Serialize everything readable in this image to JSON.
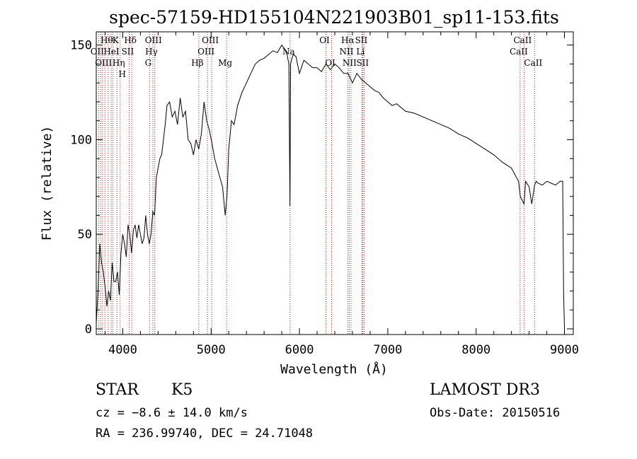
{
  "chart_data": {
    "type": "line",
    "title": "spec-57159-HD155104N221903B01_sp11-153.fits",
    "xlabel": "Wavelength (Å)",
    "ylabel": "Flux (relative)",
    "xlim": [
      3700,
      9100
    ],
    "ylim": [
      -3,
      157
    ],
    "x_ticks": [
      "4000",
      "5000",
      "6000",
      "7000",
      "8000",
      "9000"
    ],
    "y_ticks": [
      "0",
      "50",
      "100",
      "150"
    ],
    "grid": false,
    "series": [
      {
        "x": [
          3700,
          3720,
          3740,
          3760,
          3780,
          3800,
          3820,
          3840,
          3860,
          3880,
          3900,
          3920,
          3940,
          3960,
          3980,
          4000,
          4020,
          4040,
          4060,
          4080,
          4100,
          4120,
          4140,
          4160,
          4180,
          4200,
          4220,
          4240,
          4260,
          4280,
          4300,
          4320,
          4340,
          4360,
          4380,
          4400,
          4420,
          4440,
          4460,
          4480,
          4500,
          4530,
          4560,
          4590,
          4620,
          4650,
          4680,
          4710,
          4740,
          4770,
          4800,
          4830,
          4860,
          4890,
          4920,
          4950,
          4980,
          5010,
          5040,
          5070,
          5100,
          5130,
          5160,
          5180,
          5200,
          5230,
          5260,
          5300,
          5350,
          5400,
          5450,
          5500,
          5550,
          5600,
          5650,
          5700,
          5750,
          5800,
          5830,
          5860,
          5880,
          5893,
          5900,
          5910,
          5930,
          5960,
          6000,
          6050,
          6100,
          6150,
          6200,
          6250,
          6300,
          6350,
          6400,
          6450,
          6500,
          6550,
          6600,
          6650,
          6700,
          6750,
          6800,
          6850,
          6900,
          6950,
          7000,
          7050,
          7100,
          7150,
          7200,
          7300,
          7400,
          7500,
          7600,
          7700,
          7800,
          7900,
          8000,
          8100,
          8200,
          8300,
          8400,
          8480,
          8500,
          8542,
          8560,
          8600,
          8630,
          8662,
          8680,
          8700,
          8750,
          8800,
          8850,
          8900,
          8950,
          8980,
          8990,
          9000
        ],
        "y": [
          3,
          20,
          45,
          35,
          30,
          22,
          12,
          20,
          15,
          35,
          25,
          25,
          30,
          18,
          40,
          50,
          45,
          38,
          55,
          50,
          40,
          52,
          55,
          48,
          55,
          50,
          45,
          48,
          60,
          50,
          45,
          50,
          62,
          60,
          80,
          85,
          90,
          92,
          100,
          108,
          118,
          120,
          112,
          115,
          108,
          122,
          112,
          115,
          100,
          98,
          92,
          100,
          95,
          103,
          120,
          110,
          105,
          98,
          90,
          85,
          80,
          75,
          60,
          70,
          95,
          110,
          108,
          118,
          125,
          130,
          135,
          140,
          142,
          143,
          145,
          147,
          146,
          150,
          148,
          145,
          140,
          65,
          140,
          142,
          145,
          144,
          135,
          142,
          140,
          138,
          138,
          136,
          140,
          137,
          140,
          138,
          135,
          135,
          130,
          135,
          132,
          130,
          128,
          126,
          125,
          122,
          120,
          118,
          119,
          117,
          115,
          114,
          112,
          110,
          108,
          106,
          103,
          101,
          98,
          95,
          92,
          88,
          85,
          78,
          70,
          66,
          78,
          75,
          66,
          76,
          78,
          77,
          76,
          78,
          77,
          76,
          78,
          78,
          20,
          0
        ]
      }
    ],
    "line_markers": [
      {
        "x": 3727,
        "labels": [
          "OII"
        ],
        "row": 1
      },
      {
        "x": 3750,
        "labels": [],
        "row": 0
      },
      {
        "x": 3771,
        "labels": [],
        "row": 0
      },
      {
        "x": 3798,
        "labels": [
          "OIII"
        ],
        "row": 2
      },
      {
        "x": 3835,
        "labels": [
          "Hθ"
        ],
        "row": 0
      },
      {
        "x": 3869,
        "labels": [],
        "row": 0
      },
      {
        "x": 3889,
        "labels": [
          "HeI"
        ],
        "row": 1
      },
      {
        "x": 3934,
        "labels": [
          "K"
        ],
        "row": 0
      },
      {
        "x": 3970,
        "labels": [
          "Hη",
          "H"
        ],
        "row": 2
      },
      {
        "x": 4072,
        "labels": [
          "SII"
        ],
        "row": 1
      },
      {
        "x": 4102,
        "labels": [
          "Hδ"
        ],
        "row": 0
      },
      {
        "x": 4304,
        "labels": [
          "G"
        ],
        "row": 2
      },
      {
        "x": 4341,
        "labels": [
          "Hγ"
        ],
        "row": 1
      },
      {
        "x": 4363,
        "labels": [
          "OIII"
        ],
        "row": 0
      },
      {
        "x": 4861,
        "labels": [
          "Hβ"
        ],
        "row": 2
      },
      {
        "x": 4959,
        "labels": [
          "OIII"
        ],
        "row": 1
      },
      {
        "x": 5007,
        "labels": [
          "OIII"
        ],
        "row": 0
      },
      {
        "x": 5175,
        "labels": [
          "Mg"
        ],
        "row": 2
      },
      {
        "x": 5894,
        "labels": [
          "Na"
        ],
        "row": 1
      },
      {
        "x": 6300,
        "labels": [
          "OI"
        ],
        "row": 0
      },
      {
        "x": 6364,
        "labels": [
          "OI"
        ],
        "row": 2
      },
      {
        "x": 6548,
        "labels": [
          "NII"
        ],
        "row": 1
      },
      {
        "x": 6563,
        "labels": [
          "Hα"
        ],
        "row": 0
      },
      {
        "x": 6583,
        "labels": [
          "NII"
        ],
        "row": 2
      },
      {
        "x": 6707,
        "labels": [
          "Li"
        ],
        "row": 1
      },
      {
        "x": 6716,
        "labels": [
          "SII"
        ],
        "row": 0
      },
      {
        "x": 6731,
        "labels": [
          "SII"
        ],
        "row": 2
      },
      {
        "x": 8498,
        "labels": [
          "CaII"
        ],
        "row": 1
      },
      {
        "x": 8542,
        "labels": [
          "CaII"
        ],
        "row": 0
      },
      {
        "x": 8662,
        "labels": [
          "CaII"
        ],
        "row": 2
      }
    ],
    "marker_color": "#b22222"
  },
  "info": {
    "object_class": "STAR",
    "subclass": "K5",
    "survey": "LAMOST DR3",
    "redshift": "cz = −8.6 ± 14.0 km/s",
    "obs_date": "Obs-Date: 20150516",
    "coords": "RA = 236.99740, DEC =  24.71048"
  }
}
